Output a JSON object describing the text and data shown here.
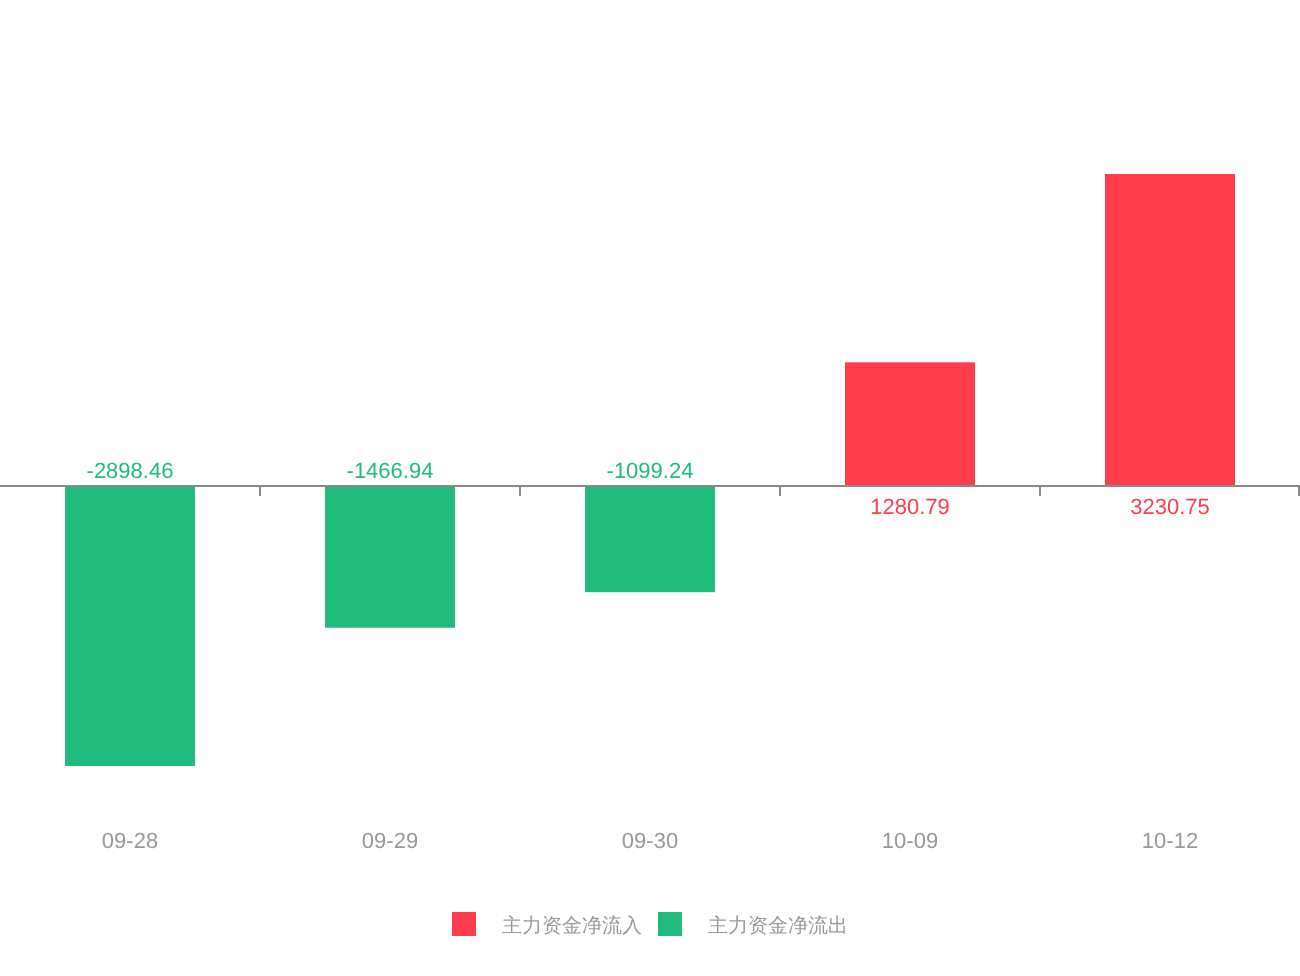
{
  "chart_data": {
    "type": "bar",
    "categories": [
      "09-28",
      "09-29",
      "09-30",
      "10-09",
      "10-12"
    ],
    "series": [
      {
        "name": "主力资金净流入",
        "color": "#fd3d4b",
        "values": [
          null,
          null,
          null,
          1280.79,
          3230.75
        ]
      },
      {
        "name": "主力资金净流出",
        "color": "#21bc7d",
        "values": [
          -2898.46,
          -1466.94,
          -1099.24,
          null,
          null
        ]
      }
    ],
    "stacked": true,
    "data_labels": true,
    "legend": "bottom",
    "tick_labels": "x"
  }
}
